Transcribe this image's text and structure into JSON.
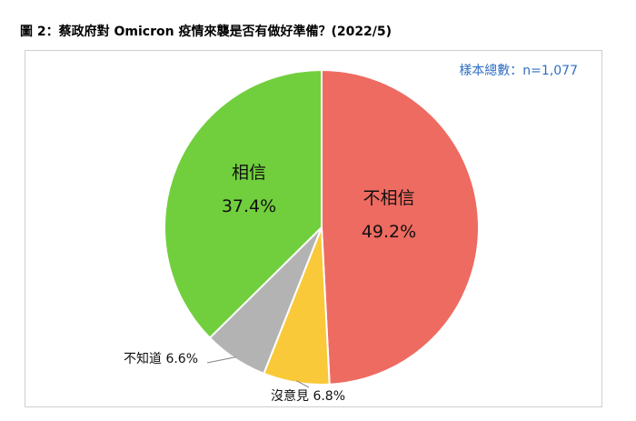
{
  "title": "圖 2：蔡政府對 Omicron 疫情來襲是否有做好準備？(2022/5)",
  "sample_note": "樣本總數：n=1,077",
  "chart_data": {
    "type": "pie",
    "title": "圖 2：蔡政府對 Omicron 疫情來襲是否有做好準備？(2022/5)",
    "slices": [
      {
        "name": "不相信",
        "value": 49.2,
        "label": "49.2%",
        "color": "#ee6b61"
      },
      {
        "name": "沒意見",
        "value": 6.8,
        "label": "6.8%",
        "color": "#f9c93a"
      },
      {
        "name": "不知道",
        "value": 6.6,
        "label": "6.6%",
        "color": "#b3b3b3"
      },
      {
        "name": "相信",
        "value": 37.4,
        "label": "37.4%",
        "color": "#71cf3d"
      }
    ],
    "label_texts": {
      "disbelieve": "不相信",
      "disbelieve_pct": "49.2%",
      "believe": "相信",
      "believe_pct": "37.4%",
      "unknown": "不知道 6.6%",
      "no_opinion": "沒意見 6.8%"
    }
  }
}
